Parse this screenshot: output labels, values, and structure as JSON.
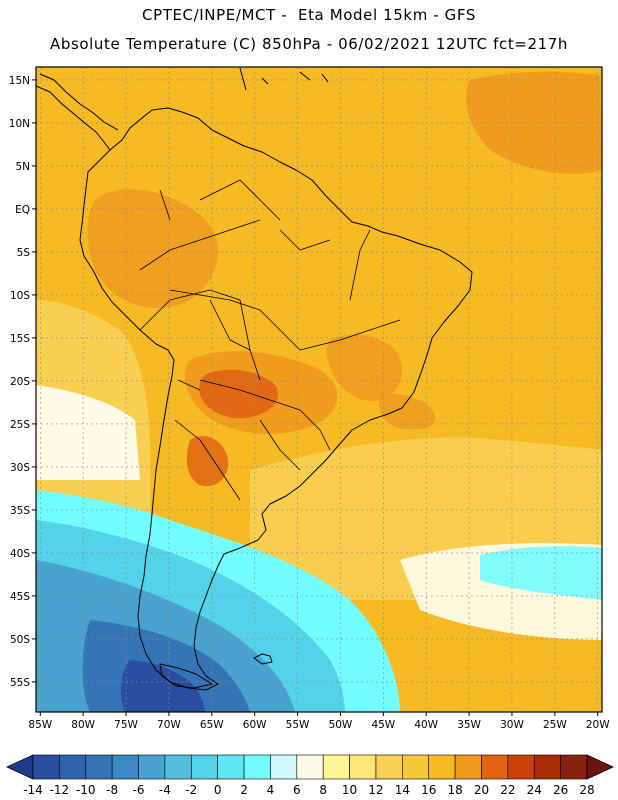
{
  "header": {
    "line1": "CPTEC/INPE/MCT -  Eta Model 15km - GFS",
    "line2": "Absolute Temperature (C) 850hPa - 06/02/2021 12UTC fct=217h"
  },
  "map": {
    "lon_range": [
      -85.5,
      -19.5
    ],
    "lat_range": [
      -58.5,
      16.5
    ],
    "lat_ticks": [
      {
        "value": 15,
        "label": "15N"
      },
      {
        "value": 10,
        "label": "10N"
      },
      {
        "value": 5,
        "label": "5N"
      },
      {
        "value": 0,
        "label": "EQ"
      },
      {
        "value": -5,
        "label": "5S"
      },
      {
        "value": -10,
        "label": "10S"
      },
      {
        "value": -15,
        "label": "15S"
      },
      {
        "value": -20,
        "label": "20S"
      },
      {
        "value": -25,
        "label": "25S"
      },
      {
        "value": -30,
        "label": "30S"
      },
      {
        "value": -35,
        "label": "35S"
      },
      {
        "value": -40,
        "label": "40S"
      },
      {
        "value": -45,
        "label": "45S"
      },
      {
        "value": -50,
        "label": "50S"
      },
      {
        "value": -55,
        "label": "55S"
      }
    ],
    "lon_ticks": [
      {
        "value": -85,
        "label": "85W"
      },
      {
        "value": -80,
        "label": "80W"
      },
      {
        "value": -75,
        "label": "75W"
      },
      {
        "value": -70,
        "label": "70W"
      },
      {
        "value": -65,
        "label": "65W"
      },
      {
        "value": -60,
        "label": "60W"
      },
      {
        "value": -55,
        "label": "55W"
      },
      {
        "value": -50,
        "label": "50W"
      },
      {
        "value": -45,
        "label": "45W"
      },
      {
        "value": -40,
        "label": "40W"
      },
      {
        "value": -35,
        "label": "35W"
      },
      {
        "value": -30,
        "label": "30W"
      },
      {
        "value": -25,
        "label": "25W"
      },
      {
        "value": -20,
        "label": "20W"
      }
    ],
    "gridlines": true,
    "field_bands": [
      {
        "max_lat": -48,
        "color": "#3575b5"
      },
      {
        "max_lat": -44,
        "color": "#4aa3cf"
      },
      {
        "max_lat": -40,
        "color": "#54d2e8"
      },
      {
        "max_lat": -36,
        "color": "#72fcfe"
      },
      {
        "max_lat": -32,
        "color": "#fffae5"
      },
      {
        "max_lat": -26,
        "color": "#fee57c"
      },
      {
        "max_lat": -18,
        "color": "#f9d054"
      },
      {
        "max_lat": 20,
        "color": "#f5ba24"
      }
    ]
  },
  "colorbar": {
    "labels": [
      "-14",
      "-12",
      "-10",
      "-8",
      "-6",
      "-4",
      "-2",
      "0",
      "2",
      "4",
      "6",
      "8",
      "10",
      "12",
      "14",
      "16",
      "18",
      "20",
      "22",
      "24",
      "26",
      "28"
    ],
    "colors": [
      "#1e3c8c",
      "#2a4fa0",
      "#3065ad",
      "#3575b5",
      "#3c8ac2",
      "#4aa3cf",
      "#54bedb",
      "#54d2e8",
      "#5ee6f2",
      "#72fcfe",
      "#d2f8fd",
      "#fffae5",
      "#fff496",
      "#fee57c",
      "#f9d054",
      "#f5c83a",
      "#f5ba24",
      "#ef9a1e",
      "#e06412",
      "#c8420a",
      "#a82e08",
      "#882210",
      "#6e1212"
    ]
  }
}
